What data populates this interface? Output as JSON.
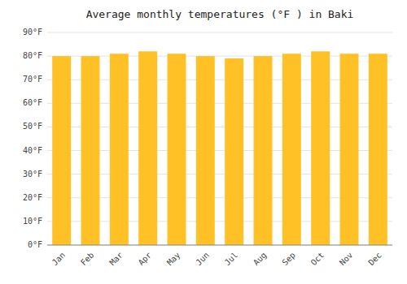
{
  "chart_data": {
    "type": "bar",
    "title": "Average monthly temperatures (°F ) in Baki",
    "categories": [
      "Jan",
      "Feb",
      "Mar",
      "Apr",
      "May",
      "Jun",
      "Jul",
      "Aug",
      "Sep",
      "Oct",
      "Nov",
      "Dec"
    ],
    "values": [
      80,
      80,
      81,
      82,
      81,
      80,
      79,
      80,
      81,
      82,
      81,
      81
    ],
    "color": "#FFC125",
    "ylim": [
      0,
      90
    ],
    "yticks": [
      {
        "value": 0,
        "label": "0°F"
      },
      {
        "value": 10,
        "label": "10°F"
      },
      {
        "value": 20,
        "label": "20°F"
      },
      {
        "value": 30,
        "label": "30°F"
      },
      {
        "value": 40,
        "label": "40°F"
      },
      {
        "value": 50,
        "label": "50°F"
      },
      {
        "value": 60,
        "label": "60°F"
      },
      {
        "value": 70,
        "label": "70°F"
      },
      {
        "value": 80,
        "label": "80°F"
      },
      {
        "value": 90,
        "label": "90°F"
      }
    ],
    "grid": true
  }
}
